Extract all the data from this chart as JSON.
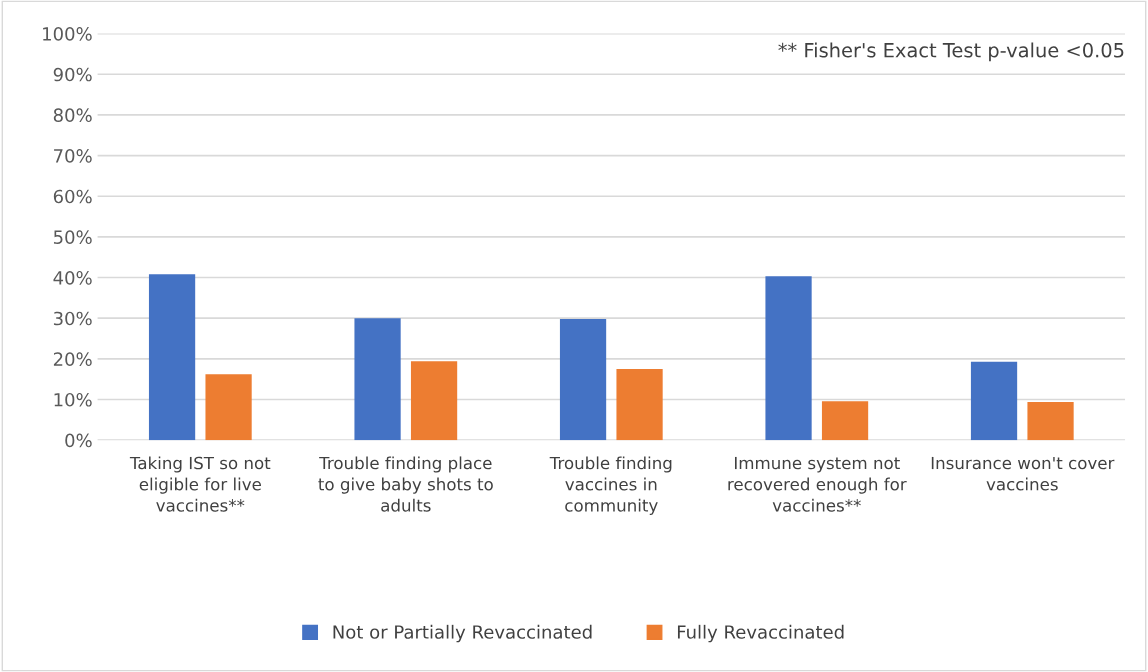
{
  "chart_data": {
    "type": "bar",
    "categories": [
      "Taking IST so not eligible for live vaccines**",
      "Trouble finding place to give baby shots to adults",
      "Trouble finding vaccines in community",
      "Immune system not recovered enough for vaccines**",
      "Insurance won't cover vaccines"
    ],
    "series": [
      {
        "name": "Not or Partially Revaccinated",
        "color": "#4472c4",
        "values": [
          40.8,
          30,
          29.8,
          40.3,
          19.3
        ]
      },
      {
        "name": "Fully Revaccinated",
        "color": "#ed7d31",
        "values": [
          16.2,
          19.4,
          17.5,
          9.6,
          9.4
        ]
      }
    ],
    "ylim": [
      0,
      100
    ],
    "yticks": [
      {
        "value": 0,
        "label": "0%"
      },
      {
        "value": 10,
        "label": "10%"
      },
      {
        "value": 20,
        "label": "20%"
      },
      {
        "value": 30,
        "label": "30%"
      },
      {
        "value": 40,
        "label": "40%"
      },
      {
        "value": 50,
        "label": "50%"
      },
      {
        "value": 60,
        "label": "60%"
      },
      {
        "value": 70,
        "label": "70%"
      },
      {
        "value": 80,
        "label": "80%"
      },
      {
        "value": 90,
        "label": "90%"
      },
      {
        "value": 100,
        "label": "100%"
      }
    ],
    "annotations": [
      "** Fisher's Exact Test p-value <0.05"
    ],
    "grid": "y",
    "legend": "bottom"
  }
}
